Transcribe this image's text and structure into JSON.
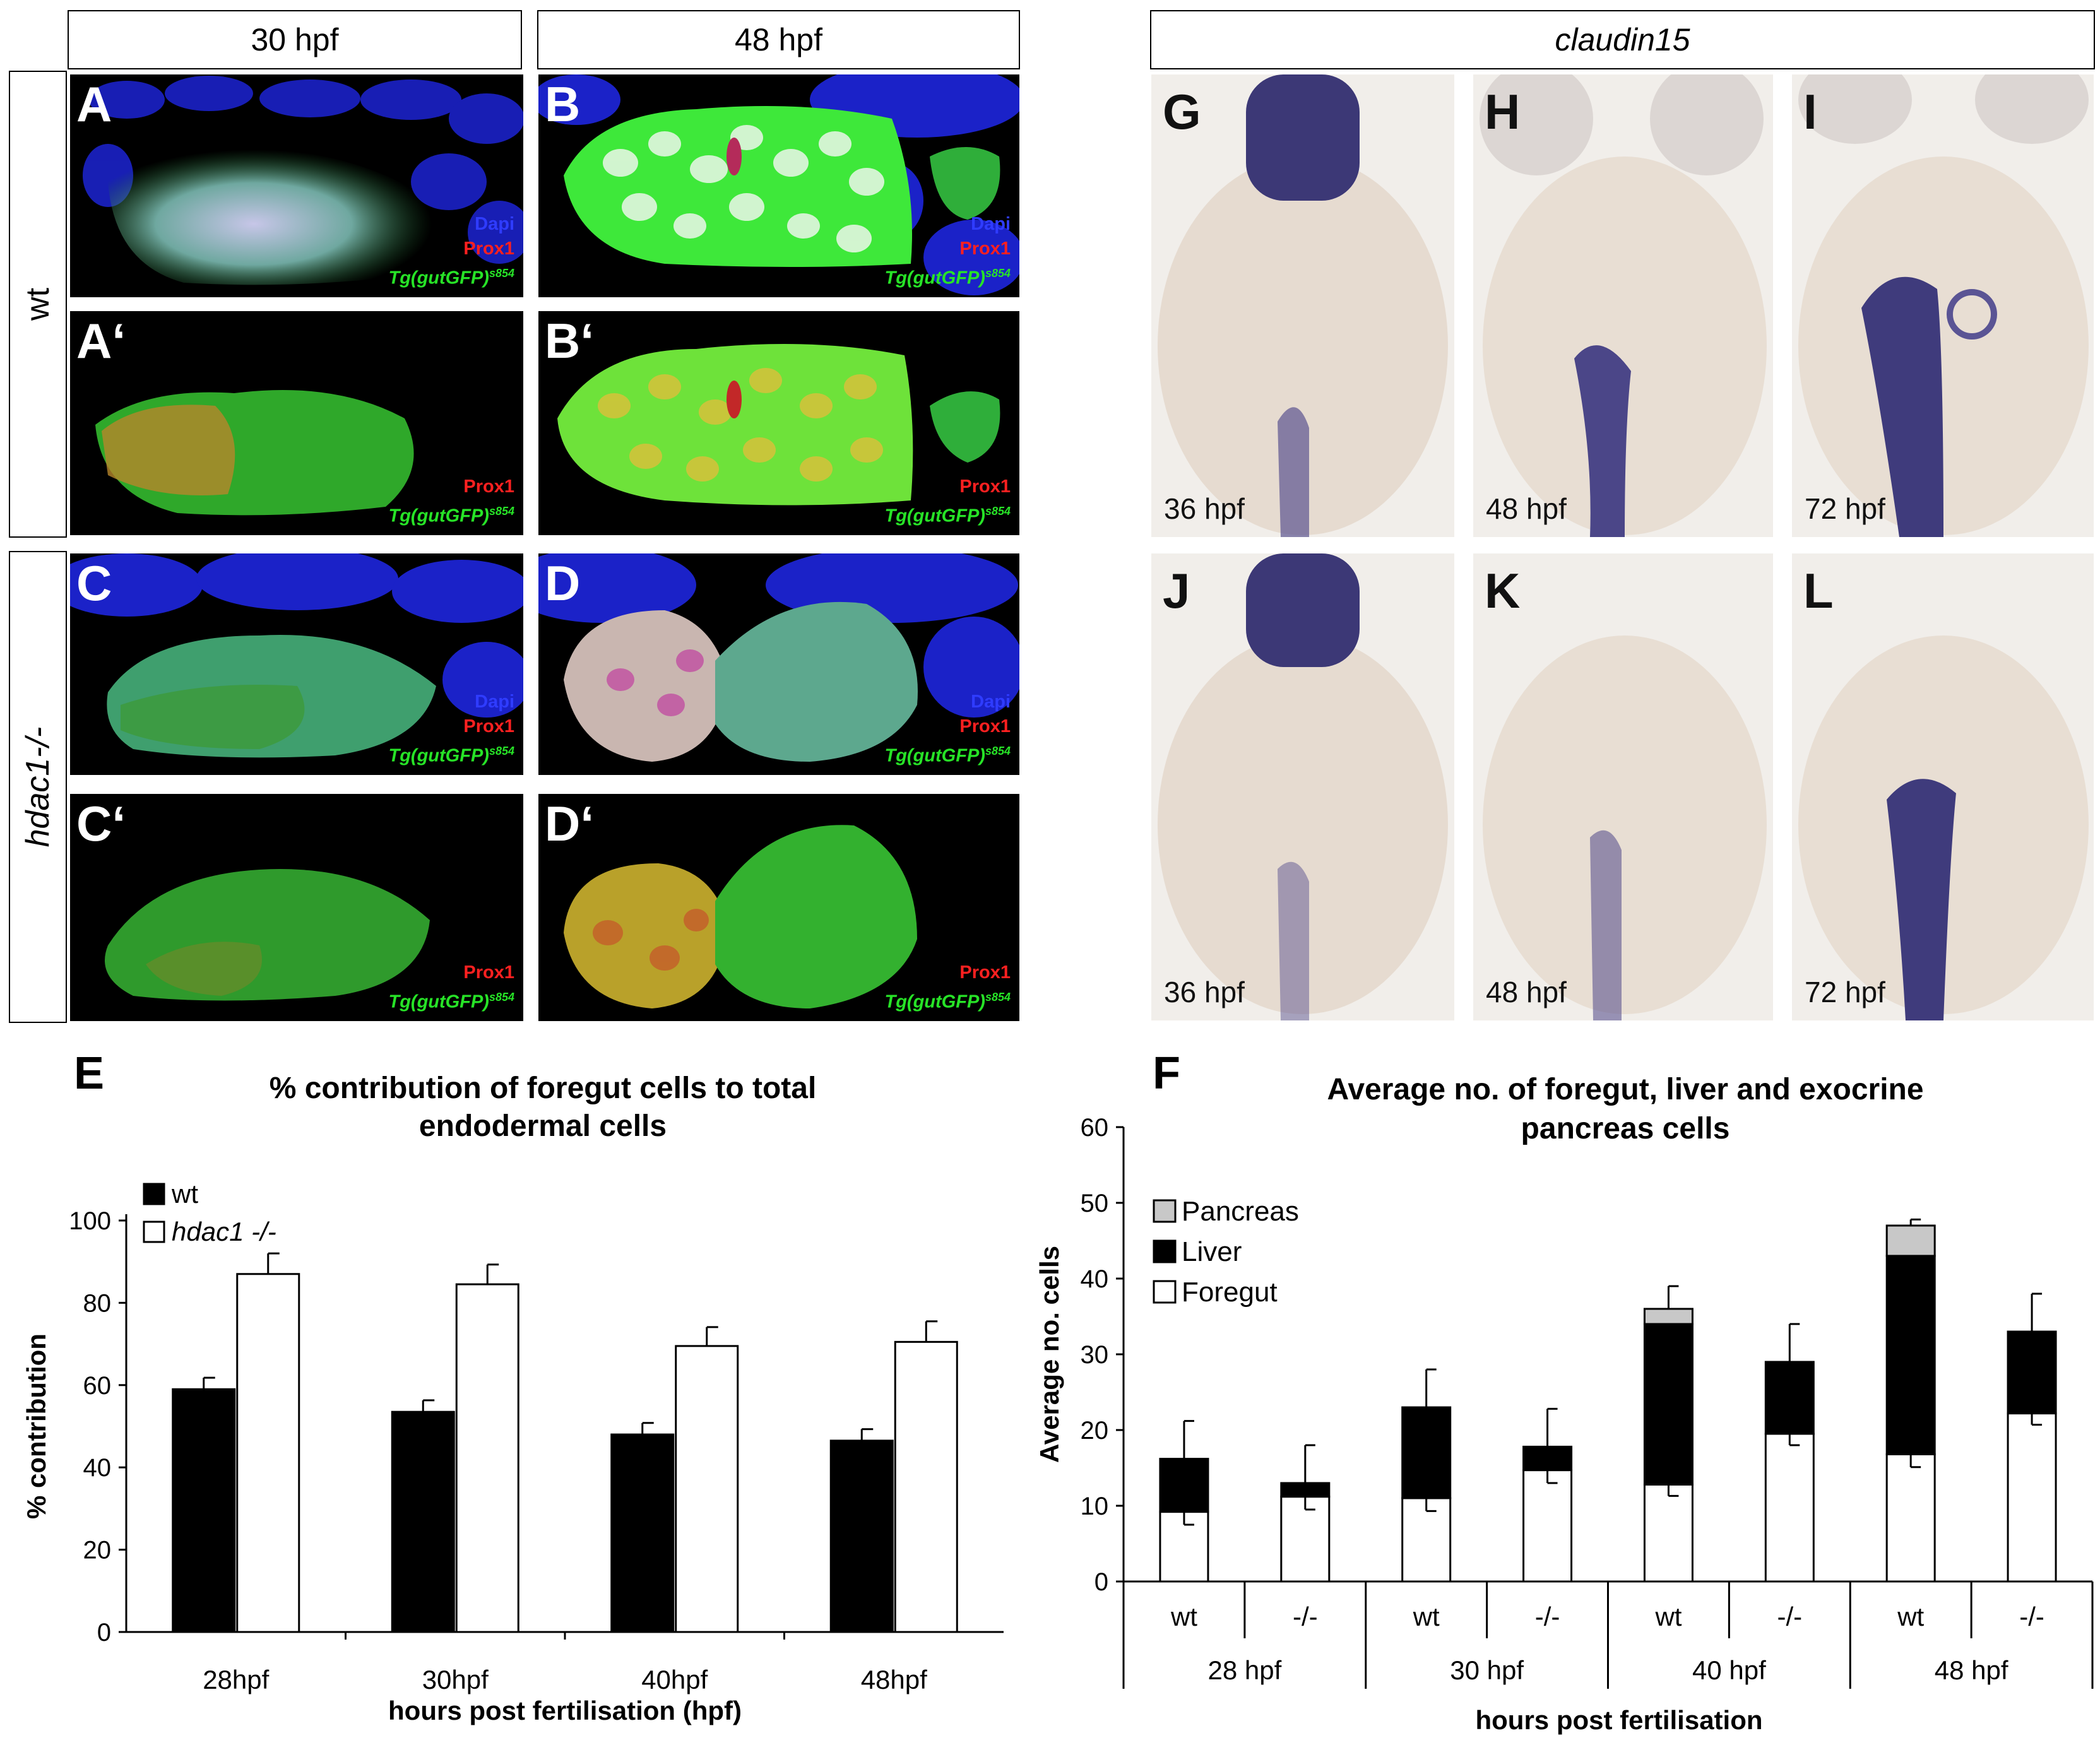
{
  "headers": {
    "h30": "30 hpf",
    "h48": "48 hpf",
    "claudin": "claudin15"
  },
  "rows": {
    "wt": "wt",
    "mutant": "hdac1-/-"
  },
  "panels": {
    "A": "A",
    "A2": "A‘",
    "B": "B",
    "B2": "B‘",
    "C": "C",
    "C2": "C‘",
    "D": "D",
    "D2": "D‘",
    "G": "G",
    "H": "H",
    "I": "I",
    "J": "J",
    "K": "K",
    "L": "L"
  },
  "legend": {
    "dapi": "Dapi",
    "prox1": "Prox1",
    "tg": "Tg(gutGFP)",
    "tg_sup": "s854"
  },
  "stages": {
    "G": "36 hpf",
    "H": "48 hpf",
    "I": "72 hpf",
    "J": "36 hpf",
    "K": "48 hpf",
    "L": "72 hpf"
  },
  "colors": {
    "dapi": "#2f3cff",
    "prox1": "#ff2020",
    "gfp": "#27e327",
    "stain": "#3d3880"
  },
  "chart_data": [
    {
      "panel": "E",
      "type": "bar",
      "title": "% contribution of foregut cells to total endodermal cells",
      "title_lines": [
        "% contribution of foregut cells to total",
        "endodermal cells"
      ],
      "xlabel": "hours post fertilisation (hpf)",
      "ylabel": "% contribution",
      "ylim": [
        0,
        100
      ],
      "yticks": [
        0,
        20,
        40,
        60,
        80,
        100
      ],
      "categories": [
        "28hpf",
        "30hpf",
        "40hpf",
        "48hpf"
      ],
      "series": [
        {
          "name": "wt",
          "values": [
            59,
            53.5,
            48,
            46.5
          ],
          "errors": [
            2.8,
            2.8,
            2.8,
            2.8
          ],
          "color": "#000000"
        },
        {
          "name": "hdac1 -/-",
          "values": [
            87,
            84.5,
            69.5,
            70.5
          ],
          "errors": [
            5,
            4.8,
            4.6,
            5
          ],
          "color": "#ffffff"
        }
      ],
      "legend_position": "top-left"
    },
    {
      "panel": "F",
      "type": "bar",
      "stacked": true,
      "title": "Average no. of foregut, liver and exocrine pancreas cells",
      "title_lines": [
        "Average no. of foregut, liver and exocrine",
        "pancreas cells"
      ],
      "xlabel": "hours post fertilisation",
      "ylabel": "Average no. cells",
      "ylim": [
        0,
        60
      ],
      "yticks": [
        0,
        10,
        20,
        30,
        40,
        50,
        60
      ],
      "groups": [
        "28 hpf",
        "30 hpf",
        "40 hpf",
        "48 hpf"
      ],
      "categories": [
        "wt",
        "-/-",
        "wt",
        "-/-",
        "wt",
        "-/-",
        "wt",
        "-/-"
      ],
      "series": [
        {
          "name": "Foregut",
          "values": [
            9.2,
            11.2,
            11,
            14.7,
            12.8,
            19.5,
            16.8,
            22.2
          ],
          "errors": [
            1.7,
            1.7,
            1.7,
            1.7,
            1.5,
            1.5,
            1.7,
            1.5
          ],
          "color": "#ffffff"
        },
        {
          "name": "Liver",
          "values": [
            7,
            1.8,
            12,
            3.1,
            21.2,
            9.5,
            26.2,
            10.8
          ],
          "color": "#000000"
        },
        {
          "name": "Pancreas",
          "values": [
            0,
            0,
            0,
            0,
            2,
            0,
            4,
            0
          ],
          "color": "#c8c8c8"
        }
      ],
      "total_errors": [
        5,
        5,
        5,
        5,
        3,
        5,
        0.8,
        5
      ],
      "legend_position": "top-left"
    }
  ]
}
